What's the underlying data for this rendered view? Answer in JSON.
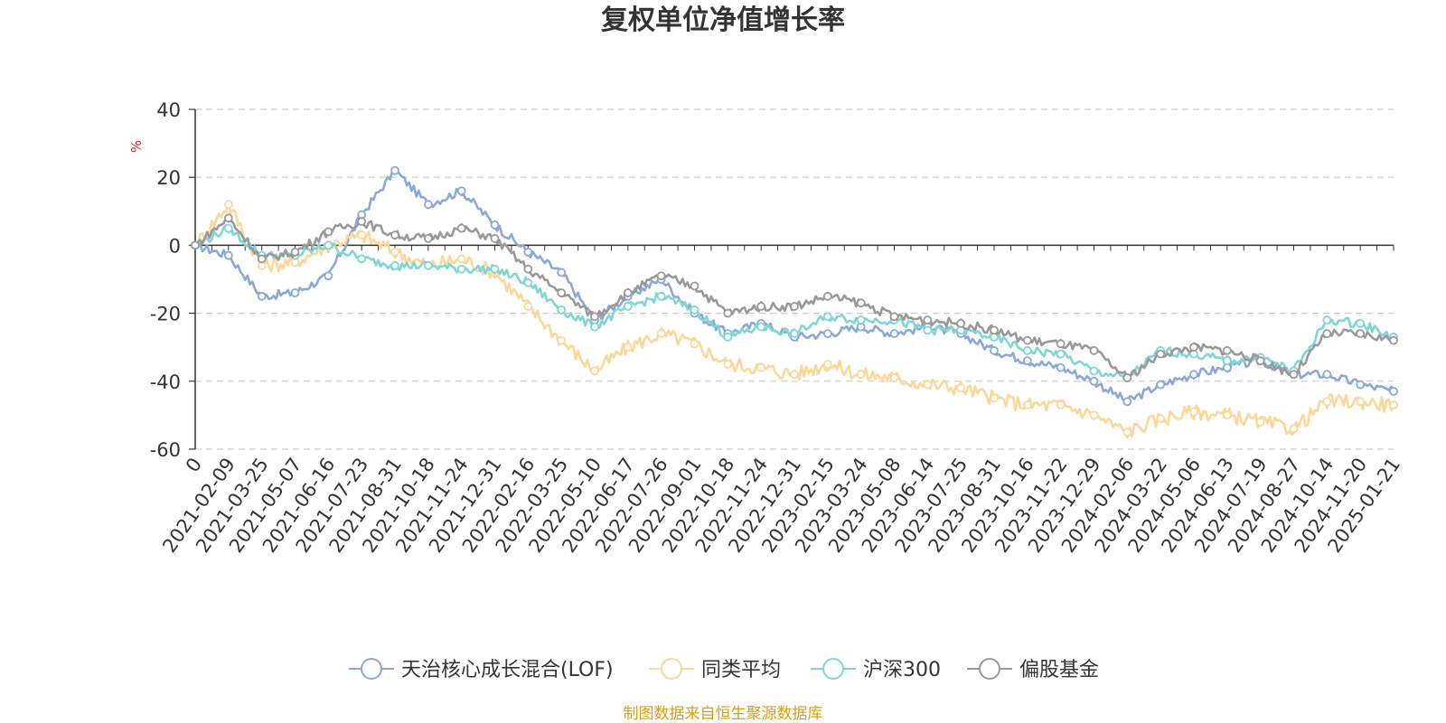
{
  "chart_data": {
    "type": "line",
    "title": "复权单位净值增长率",
    "ylabel": "%",
    "ylim": [
      -60,
      40
    ],
    "yticks": [
      40,
      20,
      0,
      -20,
      -40,
      -60
    ],
    "grid": true,
    "legend_position": "bottom",
    "categories": [
      "0",
      "2021-02-09",
      "2021-03-25",
      "2021-05-07",
      "2021-06-16",
      "2021-07-23",
      "2021-08-31",
      "2021-10-18",
      "2021-11-24",
      "2021-12-31",
      "2022-02-16",
      "2022-03-25",
      "2022-05-10",
      "2022-06-17",
      "2022-07-26",
      "2022-09-01",
      "2022-10-18",
      "2022-11-24",
      "2022-12-31",
      "2023-02-15",
      "2023-03-24",
      "2023-05-08",
      "2023-06-14",
      "2023-07-25",
      "2023-08-31",
      "2023-10-16",
      "2023-11-22",
      "2023-12-29",
      "2024-02-06",
      "2024-03-22",
      "2024-05-06",
      "2024-06-13",
      "2024-07-19",
      "2024-08-27",
      "2024-10-14",
      "2024-11-20",
      "2025-01-21"
    ],
    "series": [
      {
        "name": "天治核心成长混合(LOF)",
        "color": "#8aa8d8",
        "values": [
          0,
          -3,
          -15,
          -14,
          -9,
          9,
          22,
          12,
          16,
          6,
          -2,
          -8,
          -22,
          -15,
          -10,
          -20,
          -26,
          -23,
          -27,
          -26,
          -24,
          -26,
          -24,
          -26,
          -31,
          -34,
          -36,
          -40,
          -46,
          -41,
          -38,
          -36,
          -34,
          -38,
          -38,
          -41,
          -43
        ]
      },
      {
        "name": "同类平均",
        "color": "#fcd79a",
        "values": [
          0,
          12,
          -6,
          -5,
          0,
          3,
          -2,
          -6,
          -4,
          -8,
          -18,
          -28,
          -37,
          -30,
          -26,
          -29,
          -35,
          -36,
          -38,
          -35,
          -38,
          -39,
          -41,
          -42,
          -45,
          -47,
          -47,
          -50,
          -55,
          -51,
          -49,
          -50,
          -52,
          -54,
          -46,
          -46,
          -47
        ]
      },
      {
        "name": "沪深300",
        "color": "#7fd6d2",
        "values": [
          0,
          5,
          -3,
          -3,
          0,
          -4,
          -6,
          -6,
          -7,
          -7,
          -11,
          -19,
          -24,
          -18,
          -15,
          -19,
          -27,
          -24,
          -26,
          -21,
          -22,
          -22,
          -25,
          -25,
          -27,
          -31,
          -32,
          -37,
          -39,
          -31,
          -32,
          -34,
          -33,
          -37,
          -22,
          -23,
          -27
        ]
      },
      {
        "name": "偏股基金",
        "color": "#999999",
        "values": [
          0,
          8,
          -4,
          -2,
          4,
          7,
          3,
          2,
          5,
          2,
          -7,
          -14,
          -21,
          -14,
          -9,
          -12,
          -20,
          -18,
          -18,
          -15,
          -17,
          -21,
          -22,
          -23,
          -25,
          -28,
          -29,
          -31,
          -39,
          -32,
          -30,
          -31,
          -34,
          -38,
          -26,
          -26,
          -28
        ]
      }
    ]
  },
  "source_text": "制图数据来自恒生聚源数据库",
  "colors": {
    "title": "#333333",
    "ylabel": "#e02020",
    "source": "#d4a017",
    "grid": "#cccccc",
    "axis": "#333333"
  }
}
